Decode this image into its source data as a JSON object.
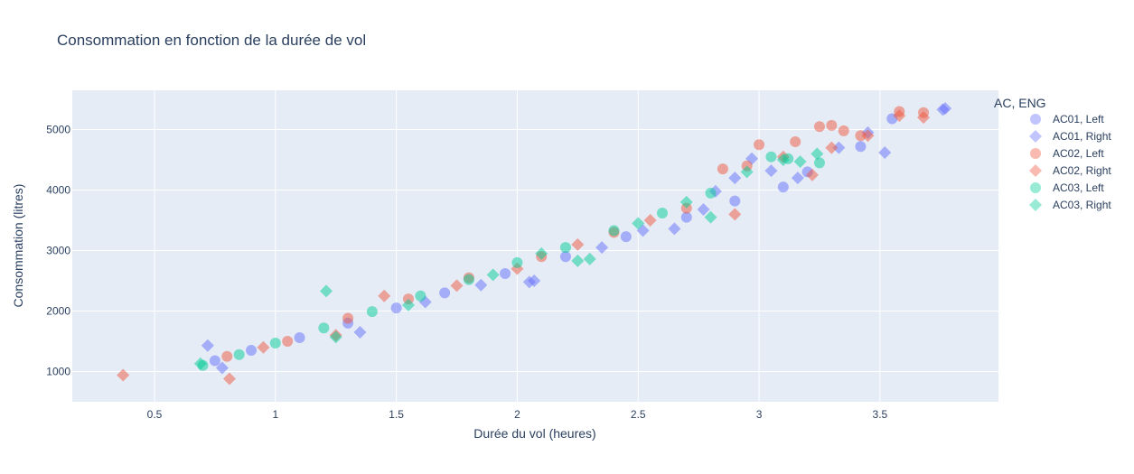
{
  "chart_data": {
    "type": "scatter",
    "title": "Consommation en fonction de la durée de vol",
    "xlabel": "Durée du vol (heures)",
    "ylabel": "Consommation (litres)",
    "xlim": [
      0.16,
      3.99
    ],
    "ylim": [
      500,
      5650
    ],
    "xticks": [
      0.5,
      1,
      1.5,
      2,
      2.5,
      3,
      3.5
    ],
    "yticks": [
      1000,
      2000,
      3000,
      4000,
      5000
    ],
    "grid": true,
    "legend": {
      "title": "AC, ENG",
      "placement": "right"
    },
    "series": [
      {
        "name": "AC01, Left",
        "symbol": "circle",
        "color": "#636efa",
        "points": [
          [
            0.75,
            1180
          ],
          [
            0.9,
            1350
          ],
          [
            1.1,
            1560
          ],
          [
            1.3,
            1800
          ],
          [
            1.5,
            2050
          ],
          [
            1.7,
            2300
          ],
          [
            1.95,
            2620
          ],
          [
            2.2,
            2900
          ],
          [
            2.45,
            3230
          ],
          [
            2.7,
            3550
          ],
          [
            2.9,
            3820
          ],
          [
            3.1,
            4050
          ],
          [
            3.2,
            4300
          ],
          [
            3.42,
            4720
          ],
          [
            3.55,
            5180
          ]
        ]
      },
      {
        "name": "AC01, Right",
        "symbol": "diamond",
        "color": "#636efa",
        "points": [
          [
            0.72,
            1430
          ],
          [
            0.78,
            1060
          ],
          [
            1.35,
            1650
          ],
          [
            1.62,
            2150
          ],
          [
            1.85,
            2430
          ],
          [
            2.05,
            2480
          ],
          [
            2.07,
            2500
          ],
          [
            2.35,
            3050
          ],
          [
            2.52,
            3330
          ],
          [
            2.65,
            3360
          ],
          [
            2.77,
            3680
          ],
          [
            2.82,
            3980
          ],
          [
            2.9,
            4200
          ],
          [
            2.97,
            4520
          ],
          [
            3.05,
            4320
          ],
          [
            3.16,
            4200
          ],
          [
            3.33,
            4700
          ],
          [
            3.45,
            4950
          ],
          [
            3.52,
            4620
          ],
          [
            3.77,
            5350
          ],
          [
            3.76,
            5330
          ]
        ]
      },
      {
        "name": "AC02, Left",
        "symbol": "circle",
        "color": "#ef553b",
        "points": [
          [
            0.8,
            1250
          ],
          [
            1.05,
            1500
          ],
          [
            1.3,
            1880
          ],
          [
            1.55,
            2200
          ],
          [
            1.8,
            2550
          ],
          [
            2.1,
            2900
          ],
          [
            2.4,
            3300
          ],
          [
            2.7,
            3700
          ],
          [
            2.85,
            4350
          ],
          [
            2.95,
            4400
          ],
          [
            3.0,
            4750
          ],
          [
            3.15,
            4800
          ],
          [
            3.25,
            5050
          ],
          [
            3.3,
            5070
          ],
          [
            3.35,
            4980
          ],
          [
            3.42,
            4900
          ],
          [
            3.58,
            5300
          ],
          [
            3.68,
            5280
          ]
        ]
      },
      {
        "name": "AC02, Right",
        "symbol": "diamond",
        "color": "#ef553b",
        "points": [
          [
            0.37,
            940
          ],
          [
            0.81,
            880
          ],
          [
            0.95,
            1400
          ],
          [
            1.25,
            1600
          ],
          [
            1.45,
            2250
          ],
          [
            1.75,
            2420
          ],
          [
            2.0,
            2700
          ],
          [
            2.25,
            3100
          ],
          [
            2.55,
            3500
          ],
          [
            2.9,
            3600
          ],
          [
            3.1,
            4550
          ],
          [
            3.22,
            4250
          ],
          [
            3.3,
            4700
          ],
          [
            3.45,
            4900
          ],
          [
            3.58,
            5230
          ],
          [
            3.68,
            5200
          ]
        ]
      },
      {
        "name": "AC03, Left",
        "symbol": "circle",
        "color": "#00cc96",
        "points": [
          [
            0.7,
            1100
          ],
          [
            0.85,
            1280
          ],
          [
            1.0,
            1470
          ],
          [
            1.2,
            1720
          ],
          [
            1.4,
            1990
          ],
          [
            1.6,
            2250
          ],
          [
            1.8,
            2520
          ],
          [
            2.0,
            2800
          ],
          [
            2.2,
            3050
          ],
          [
            2.4,
            3330
          ],
          [
            2.6,
            3620
          ],
          [
            2.8,
            3950
          ],
          [
            3.05,
            4550
          ],
          [
            3.12,
            4520
          ],
          [
            3.25,
            4450
          ]
        ]
      },
      {
        "name": "AC03, Right",
        "symbol": "diamond",
        "color": "#00cc96",
        "points": [
          [
            0.69,
            1130
          ],
          [
            1.21,
            2330
          ],
          [
            1.25,
            1570
          ],
          [
            1.55,
            2100
          ],
          [
            1.9,
            2600
          ],
          [
            2.1,
            2950
          ],
          [
            2.25,
            2830
          ],
          [
            2.3,
            2860
          ],
          [
            2.5,
            3450
          ],
          [
            2.7,
            3800
          ],
          [
            2.8,
            3550
          ],
          [
            2.95,
            4300
          ],
          [
            3.1,
            4500
          ],
          [
            3.17,
            4470
          ],
          [
            3.24,
            4600
          ]
        ]
      }
    ]
  }
}
